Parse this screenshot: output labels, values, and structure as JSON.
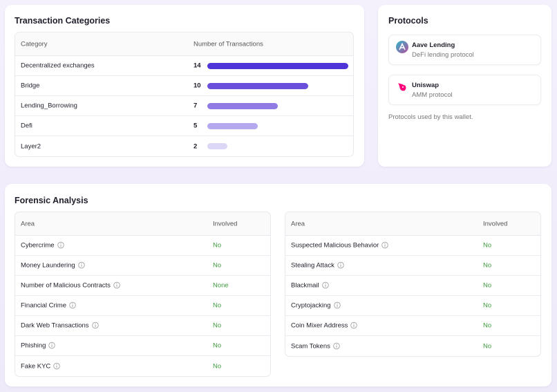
{
  "transaction_categories": {
    "title": "Transaction Categories",
    "columns": [
      "Category",
      "Number of Transactions"
    ],
    "rows": [
      {
        "category": "Decentralized exchanges",
        "count": 14,
        "color": "#4f35d8"
      },
      {
        "category": "Bridge",
        "count": 10,
        "color": "#6a4fdc"
      },
      {
        "category": "Lending_Borrowing",
        "count": 7,
        "color": "#8f7be3"
      },
      {
        "category": "Defi",
        "count": 5,
        "color": "#b5a8ee"
      },
      {
        "category": "Layer2",
        "count": 2,
        "color": "#dcd6f7"
      }
    ]
  },
  "protocols": {
    "title": "Protocols",
    "items": [
      {
        "name": "Aave Lending",
        "description": "DeFi lending protocol"
      },
      {
        "name": "Uniswap",
        "description": "AMM protocol"
      }
    ],
    "note": "Protocols used by this wallet."
  },
  "forensic_analysis": {
    "title": "Forensic Analysis",
    "tables": [
      {
        "columns": [
          "Area",
          "Involved"
        ],
        "rows": [
          [
            "Cybercrime",
            "No"
          ],
          [
            "Money Laundering",
            "No"
          ],
          [
            "Number of Malicious Contracts",
            "None"
          ],
          [
            "Financial Crime",
            "No"
          ],
          [
            "Dark Web Transactions",
            "No"
          ],
          [
            "Phishing",
            "No"
          ],
          [
            "Fake KYC",
            "No"
          ]
        ]
      },
      {
        "columns": [
          "Area",
          "Involved"
        ],
        "rows": [
          [
            "Suspected Malicious Behavior",
            "No"
          ],
          [
            "Stealing Attack",
            "No"
          ],
          [
            "Blackmail",
            "No"
          ],
          [
            "Cryptojacking",
            "No"
          ],
          [
            "Coin Mixer Address",
            "No"
          ],
          [
            "Scam Tokens",
            "No"
          ]
        ]
      }
    ]
  }
}
